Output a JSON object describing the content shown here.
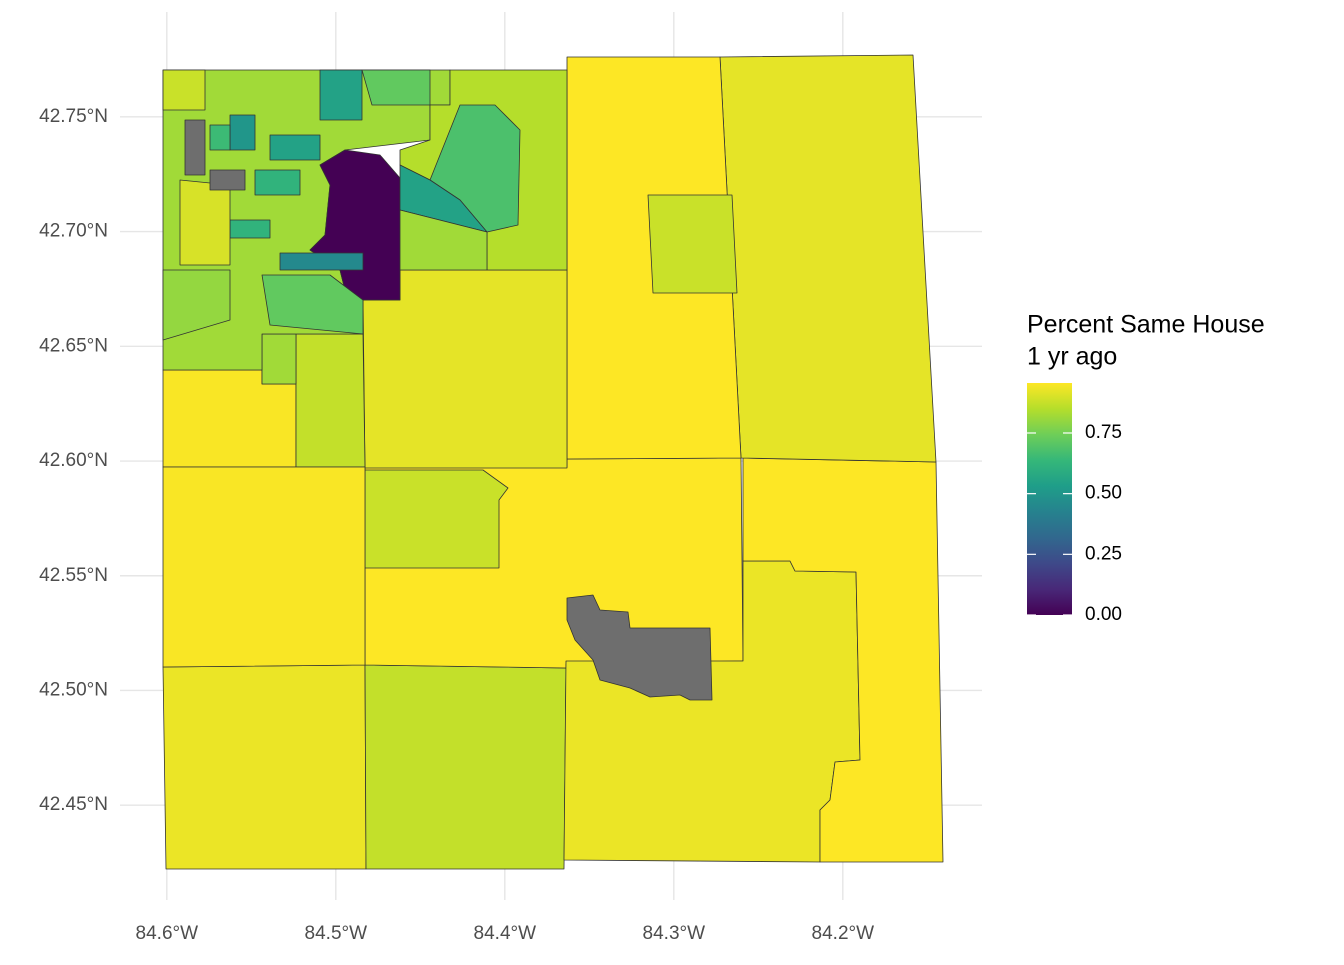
{
  "chart_data": {
    "type": "map",
    "xlim": [
      -84.62,
      -84.12
    ],
    "ylim": [
      42.41,
      42.78
    ],
    "xticks": [
      {
        "value": -84.6,
        "label": "84.6°W"
      },
      {
        "value": -84.5,
        "label": "84.5°W"
      },
      {
        "value": -84.4,
        "label": "84.4°W"
      },
      {
        "value": -84.3,
        "label": "84.3°W"
      },
      {
        "value": -84.2,
        "label": "84.2°W"
      }
    ],
    "yticks": [
      {
        "value": 42.45,
        "label": "42.45°N"
      },
      {
        "value": 42.5,
        "label": "42.50°N"
      },
      {
        "value": 42.55,
        "label": "42.55°N"
      },
      {
        "value": 42.6,
        "label": "42.60°N"
      },
      {
        "value": 42.65,
        "label": "42.65°N"
      },
      {
        "value": 42.7,
        "label": "42.70°N"
      },
      {
        "value": 42.75,
        "label": "42.75°N"
      }
    ],
    "grid": true,
    "values": [
      0.93,
      0.87,
      0.97,
      0.88,
      0.93,
      0.96,
      0.92,
      0.97,
      0.88,
      0.92,
      0.95,
      0.87,
      0.82,
      0.95,
      0.82,
      0.0,
      0.85,
      0.68,
      0.55,
      0.82,
      0.45,
      0.55,
      0.72,
      0.55,
      0.5,
      0.62,
      0.65,
      0.62,
      0.88,
      0.72,
      0.9,
      0.8,
      null,
      null,
      null
    ],
    "legend_title": [
      "Percent Same House",
      "1 yr ago"
    ],
    "color_lim": [
      0,
      0.956
    ],
    "color_ticks": [
      {
        "value": 0,
        "label": "0.00"
      },
      {
        "value": 0.25,
        "label": "0.25"
      },
      {
        "value": 0.5,
        "label": "0.50"
      },
      {
        "value": 0.75,
        "label": "0.75"
      }
    ],
    "palette": [
      "#440154",
      "#482878",
      "#3e4989",
      "#31688e",
      "#26828e",
      "#1f9e89",
      "#35b779",
      "#6ece58",
      "#b5de2b",
      "#fde725"
    ],
    "na_color": "#6e6e6e"
  }
}
